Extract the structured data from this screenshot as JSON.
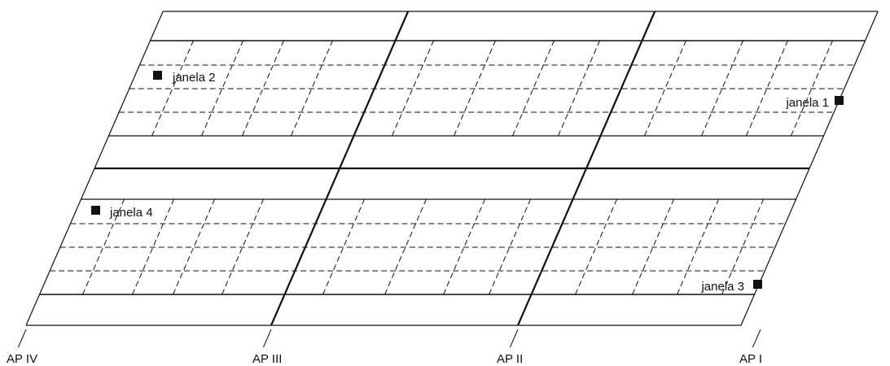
{
  "colors": {
    "stroke": "#111111",
    "background": "#ffffff",
    "marker": "#111111"
  },
  "windows": [
    {
      "id": "janela-1",
      "label": "janela 1"
    },
    {
      "id": "janela-2",
      "label": "janela 2"
    },
    {
      "id": "janela-3",
      "label": "janela 3"
    },
    {
      "id": "janela-4",
      "label": "janela 4"
    }
  ],
  "alignment_labels": [
    "AP IV",
    "AP III",
    "AP II",
    "AP I"
  ]
}
